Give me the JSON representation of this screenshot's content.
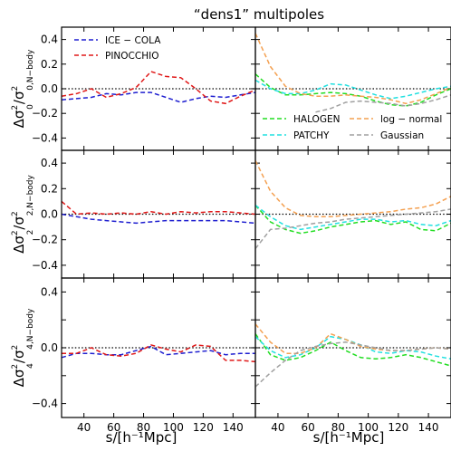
{
  "figure": {
    "title": "“dens1” multipoles",
    "xlabel": "s/[h⁻¹Mpc]",
    "ylabels": [
      {
        "main": "Δσ",
        "sup": "2",
        "sub": "0",
        "den": "σ",
        "den_sup": "2",
        "den_sub": "0,N−body"
      },
      {
        "main": "Δσ",
        "sup": "2",
        "sub": "2",
        "den": "σ",
        "den_sup": "2",
        "den_sub": "2,N−body"
      },
      {
        "main": "Δσ",
        "sup": "2",
        "sub": "4",
        "den": "σ",
        "den_sup": "2",
        "den_sub": "4,N−body"
      }
    ]
  },
  "chart_data": {
    "type": "line",
    "title": "“dens1” multipoles",
    "xlabel": "s/[h⁻¹Mpc]",
    "xlim": [
      25,
      155
    ],
    "ylim": [
      -0.5,
      0.5
    ],
    "x_ticks": [
      40,
      60,
      80,
      100,
      120,
      140
    ],
    "x_tick_labels": [
      "40",
      "60",
      "80",
      "100",
      "120",
      "140"
    ],
    "y_ticks": [
      -0.4,
      -0.2,
      0.0,
      0.2,
      0.4
    ],
    "y_tick_labels_full": [
      "−0.4",
      "−0.2",
      "0.0",
      "0.2",
      "0.4"
    ],
    "y_tick_labels_bottom": [
      "−0.4",
      "",
      "0.0",
      "",
      "0.4"
    ],
    "x": [
      25,
      35,
      45,
      55,
      65,
      75,
      85,
      95,
      105,
      115,
      125,
      135,
      145,
      155
    ],
    "reference_line": 0.0,
    "colors": {
      "ICE − COLA": "#1f1fd0",
      "PINOCCHIO": "#e01818",
      "HALOGEN": "#22dd22",
      "PATCHY": "#22e0e0",
      "log − normal": "#f4a050",
      "Gaussian": "#a0a0a0",
      "zero": "#000000"
    },
    "panels": [
      {
        "row": 0,
        "col": 0,
        "legend_position": "top-left",
        "series": [
          {
            "name": "ICE − COLA",
            "values": [
              -0.09,
              -0.08,
              -0.07,
              -0.04,
              -0.05,
              -0.03,
              -0.03,
              -0.07,
              -0.11,
              -0.08,
              -0.06,
              -0.07,
              -0.05,
              -0.03
            ]
          },
          {
            "name": "PINOCCHIO",
            "values": [
              -0.06,
              -0.04,
              0.0,
              -0.07,
              -0.04,
              0.01,
              0.14,
              0.1,
              0.09,
              0.0,
              -0.1,
              -0.12,
              -0.06,
              -0.01
            ]
          }
        ]
      },
      {
        "row": 0,
        "col": 1,
        "legend_position": "bottom",
        "series": [
          {
            "name": "HALOGEN",
            "values": [
              0.12,
              0.01,
              -0.05,
              -0.05,
              -0.04,
              -0.03,
              -0.04,
              -0.06,
              -0.1,
              -0.13,
              -0.14,
              -0.11,
              -0.05,
              0.0
            ]
          },
          {
            "name": "PATCHY",
            "values": [
              0.07,
              0.0,
              -0.04,
              -0.04,
              -0.01,
              0.04,
              0.03,
              -0.01,
              -0.05,
              -0.08,
              -0.06,
              -0.03,
              0.0,
              0.02
            ]
          },
          {
            "name": "log − normal",
            "values": [
              0.45,
              0.18,
              0.02,
              -0.04,
              -0.06,
              -0.06,
              -0.05,
              -0.06,
              -0.07,
              -0.09,
              -0.12,
              -0.09,
              -0.04,
              0.01
            ]
          },
          {
            "name": "Gaussian",
            "values": [
              null,
              null,
              null,
              null,
              -0.19,
              -0.16,
              -0.11,
              -0.1,
              -0.11,
              -0.12,
              -0.14,
              -0.12,
              -0.09,
              -0.05
            ]
          }
        ]
      },
      {
        "row": 1,
        "col": 0,
        "series": [
          {
            "name": "ICE − COLA",
            "values": [
              0.0,
              -0.02,
              -0.04,
              -0.05,
              -0.06,
              -0.07,
              -0.06,
              -0.05,
              -0.05,
              -0.05,
              -0.05,
              -0.05,
              -0.06,
              -0.07
            ]
          },
          {
            "name": "PINOCCHIO",
            "values": [
              0.1,
              0.0,
              0.01,
              0.0,
              0.01,
              0.0,
              0.02,
              0.0,
              0.02,
              0.01,
              0.02,
              0.02,
              0.01,
              0.0
            ]
          }
        ]
      },
      {
        "row": 1,
        "col": 1,
        "series": [
          {
            "name": "HALOGEN",
            "values": [
              0.07,
              -0.06,
              -0.12,
              -0.15,
              -0.13,
              -0.1,
              -0.08,
              -0.06,
              -0.05,
              -0.08,
              -0.06,
              -0.12,
              -0.13,
              -0.07
            ]
          },
          {
            "name": "PATCHY",
            "values": [
              0.07,
              -0.02,
              -0.09,
              -0.12,
              -0.1,
              -0.08,
              -0.06,
              -0.04,
              -0.04,
              -0.06,
              -0.05,
              -0.08,
              -0.09,
              -0.05
            ]
          },
          {
            "name": "log − normal",
            "values": [
              0.42,
              0.18,
              0.05,
              -0.01,
              -0.02,
              -0.02,
              -0.01,
              0.0,
              0.01,
              0.02,
              0.04,
              0.05,
              0.08,
              0.14
            ]
          },
          {
            "name": "Gaussian",
            "values": [
              -0.27,
              -0.12,
              -0.11,
              -0.09,
              -0.07,
              -0.06,
              -0.04,
              -0.03,
              -0.02,
              -0.01,
              0.0,
              0.01,
              0.02,
              0.04
            ]
          }
        ]
      },
      {
        "row": 2,
        "col": 0,
        "series": [
          {
            "name": "ICE − COLA",
            "values": [
              -0.07,
              -0.04,
              -0.04,
              -0.05,
              -0.05,
              -0.02,
              0.01,
              -0.05,
              -0.04,
              -0.03,
              -0.02,
              -0.05,
              -0.04,
              -0.04
            ]
          },
          {
            "name": "PINOCCHIO",
            "values": [
              -0.04,
              -0.04,
              0.0,
              -0.05,
              -0.06,
              -0.04,
              0.02,
              -0.01,
              -0.03,
              0.02,
              0.01,
              -0.09,
              -0.09,
              -0.1
            ]
          }
        ]
      },
      {
        "row": 2,
        "col": 1,
        "series": [
          {
            "name": "HALOGEN",
            "values": [
              0.1,
              -0.05,
              -0.09,
              -0.07,
              -0.02,
              0.04,
              -0.02,
              -0.07,
              -0.08,
              -0.07,
              -0.05,
              -0.07,
              -0.1,
              -0.13
            ]
          },
          {
            "name": "PATCHY",
            "values": [
              0.08,
              -0.02,
              -0.07,
              -0.05,
              0.0,
              0.08,
              0.06,
              0.02,
              -0.03,
              -0.04,
              -0.02,
              -0.03,
              -0.06,
              -0.08
            ]
          },
          {
            "name": "log − normal",
            "values": [
              0.17,
              0.04,
              -0.04,
              -0.04,
              0.0,
              0.1,
              0.06,
              0.01,
              -0.01,
              -0.02,
              -0.02,
              -0.01,
              0.0,
              -0.01
            ]
          },
          {
            "name": "Gaussian",
            "values": [
              -0.28,
              -0.18,
              -0.09,
              -0.02,
              0.01,
              0.03,
              0.04,
              0.02,
              0.0,
              -0.02,
              -0.02,
              -0.01,
              0.0,
              -0.01
            ]
          }
        ]
      }
    ]
  }
}
